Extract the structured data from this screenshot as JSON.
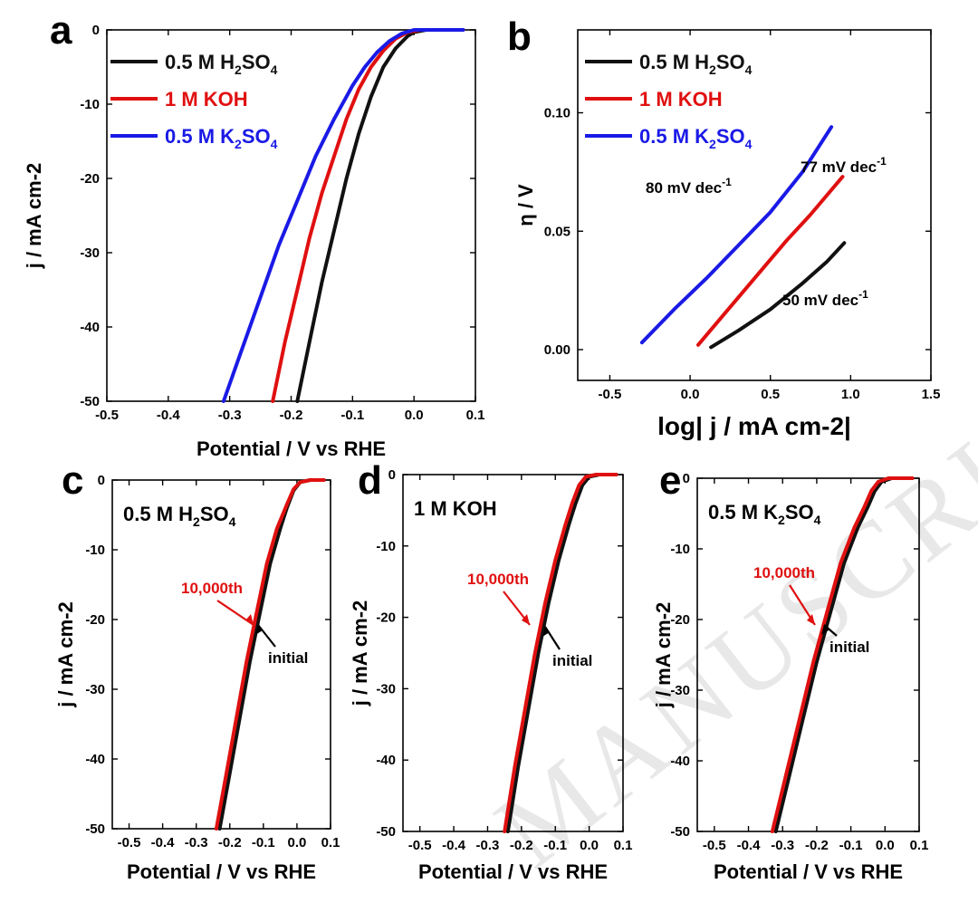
{
  "colors": {
    "black": "#111111",
    "red": "#e01010",
    "blue": "#1a1ae6"
  },
  "chart_data": [
    {
      "panel": "a",
      "type": "line",
      "xlabel": "Potential / V vs RHE",
      "ylabel": "j / mA cm-2",
      "xlim": [
        -0.5,
        0.1
      ],
      "ylim": [
        -50,
        0
      ],
      "xticks": [
        "-0.5",
        "-0.4",
        "-0.3",
        "-0.2",
        "-0.1",
        "0.0",
        "0.1"
      ],
      "yticks": [
        "-50",
        "-40",
        "-30",
        "-20",
        "-10",
        "0"
      ],
      "legend": [
        {
          "base": "0.5 M H",
          "sub1": "2",
          "mid": "SO",
          "sub2": "4",
          "color": "black"
        },
        {
          "base": "1 M KOH",
          "sub1": "",
          "mid": "",
          "sub2": "",
          "color": "red"
        },
        {
          "base": "0.5 M K",
          "sub1": "2",
          "mid": "SO",
          "sub2": "4",
          "color": "blue"
        }
      ],
      "series": [
        {
          "name": "0.5 M H2SO4",
          "color": "black",
          "x": [
            -0.19,
            -0.17,
            -0.15,
            -0.13,
            -0.11,
            -0.09,
            -0.07,
            -0.05,
            -0.03,
            -0.01,
            0.0,
            0.02,
            0.05,
            0.08
          ],
          "y": [
            -50,
            -42,
            -34,
            -27,
            -20,
            -14,
            -9,
            -5,
            -2.5,
            -0.8,
            -0.3,
            0,
            0,
            0
          ]
        },
        {
          "name": "1 M KOH",
          "color": "red",
          "x": [
            -0.23,
            -0.21,
            -0.19,
            -0.17,
            -0.15,
            -0.13,
            -0.11,
            -0.09,
            -0.07,
            -0.05,
            -0.03,
            -0.01,
            0.01,
            0.04,
            0.08
          ],
          "y": [
            -50,
            -42,
            -35,
            -28,
            -22,
            -17,
            -12,
            -8,
            -5,
            -2.8,
            -1.2,
            -0.3,
            0,
            0,
            0
          ]
        },
        {
          "name": "0.5 M K2SO4",
          "color": "blue",
          "x": [
            -0.31,
            -0.28,
            -0.25,
            -0.22,
            -0.19,
            -0.16,
            -0.13,
            -0.1,
            -0.08,
            -0.06,
            -0.04,
            -0.02,
            0.0,
            0.03,
            0.08
          ],
          "y": [
            -50,
            -43,
            -36,
            -29,
            -23,
            -17,
            -12,
            -7.5,
            -5,
            -3,
            -1.5,
            -0.5,
            0,
            0,
            0
          ]
        }
      ]
    },
    {
      "panel": "b",
      "type": "line",
      "xlabel": "log| j / mA cm-2|",
      "ylabel": "η / V",
      "xlim": [
        -0.7,
        1.5
      ],
      "ylim": [
        -0.013,
        0.135
      ],
      "xticks": [
        "-0.5",
        "0.0",
        "0.5",
        "1.0",
        "1.5"
      ],
      "yticks": [
        "0.00",
        "0.05",
        "0.10"
      ],
      "legend": [
        {
          "base": "0.5 M H",
          "sub1": "2",
          "mid": "SO",
          "sub2": "4",
          "color": "black"
        },
        {
          "base": "1 M KOH",
          "sub1": "",
          "mid": "",
          "sub2": "",
          "color": "red"
        },
        {
          "base": "0.5 M K",
          "sub1": "2",
          "mid": "SO",
          "sub2": "4",
          "color": "blue"
        }
      ],
      "annotations": [
        {
          "text": "80 mV dec",
          "sup": "-1"
        },
        {
          "text": "77 mV dec",
          "sup": "-1"
        },
        {
          "text": "50 mV dec",
          "sup": "-1"
        }
      ],
      "series": [
        {
          "name": "0.5 M H2SO4",
          "color": "black",
          "x": [
            0.13,
            0.3,
            0.5,
            0.7,
            0.85,
            0.96
          ],
          "y": [
            0.001,
            0.008,
            0.017,
            0.028,
            0.037,
            0.045
          ]
        },
        {
          "name": "1 M KOH",
          "color": "red",
          "x": [
            0.05,
            0.2,
            0.4,
            0.6,
            0.75,
            0.95
          ],
          "y": [
            0.002,
            0.014,
            0.03,
            0.046,
            0.057,
            0.073
          ]
        },
        {
          "name": "0.5 M K2SO4",
          "color": "blue",
          "x": [
            -0.3,
            -0.1,
            0.1,
            0.3,
            0.5,
            0.7,
            0.88
          ],
          "y": [
            0.003,
            0.017,
            0.03,
            0.044,
            0.058,
            0.075,
            0.094
          ]
        }
      ]
    },
    {
      "panel": "c",
      "type": "line",
      "label": {
        "base": "0.5 M H",
        "sub1": "2",
        "mid": "SO",
        "sub2": "4"
      },
      "xlabel": "Potential / V vs RHE",
      "ylabel": "j / mA cm-2",
      "xlim": [
        -0.55,
        0.1
      ],
      "ylim": [
        -50,
        0
      ],
      "xticks": [
        "-0.5",
        "-0.4",
        "-0.3",
        "-0.2",
        "-0.1",
        "0.0",
        "0.1"
      ],
      "yticks": [
        "-50",
        "-40",
        "-30",
        "-20",
        "-10",
        "0"
      ],
      "annotations": [
        {
          "text": "10,000th"
        },
        {
          "text": "initial"
        }
      ],
      "series": [
        {
          "name": "initial",
          "color": "black",
          "x": [
            -0.23,
            -0.2,
            -0.17,
            -0.14,
            -0.11,
            -0.08,
            -0.05,
            -0.03,
            -0.01,
            0.01,
            0.04,
            0.08
          ],
          "y": [
            -50,
            -42,
            -34,
            -26,
            -19,
            -12,
            -7,
            -4,
            -1.5,
            -0.3,
            0,
            0
          ]
        },
        {
          "name": "10,000th",
          "color": "red",
          "x": [
            -0.24,
            -0.21,
            -0.18,
            -0.15,
            -0.12,
            -0.09,
            -0.06,
            -0.03,
            -0.01,
            0.01,
            0.04,
            0.08
          ],
          "y": [
            -50,
            -42,
            -34,
            -26,
            -19,
            -12,
            -7,
            -3.5,
            -1.3,
            -0.3,
            0,
            0
          ]
        }
      ]
    },
    {
      "panel": "d",
      "type": "line",
      "label": {
        "base": "1 M KOH",
        "sub1": "",
        "mid": "",
        "sub2": ""
      },
      "xlabel": "Potential / V vs RHE",
      "ylabel": "j / mA cm-2",
      "xlim": [
        -0.55,
        0.1
      ],
      "ylim": [
        -50,
        0
      ],
      "xticks": [
        "-0.5",
        "-0.4",
        "-0.3",
        "-0.2",
        "-0.1",
        "0.0",
        "0.1"
      ],
      "yticks": [
        "-50",
        "-40",
        "-30",
        "-20",
        "-10",
        "0"
      ],
      "annotations": [
        {
          "text": "10,000th"
        },
        {
          "text": "initial"
        }
      ],
      "series": [
        {
          "name": "initial",
          "color": "black",
          "x": [
            -0.24,
            -0.21,
            -0.18,
            -0.15,
            -0.12,
            -0.09,
            -0.06,
            -0.04,
            -0.02,
            0.0,
            0.03,
            0.08
          ],
          "y": [
            -50,
            -41,
            -33,
            -25,
            -18,
            -12,
            -7,
            -4,
            -1.5,
            -0.3,
            0,
            0
          ]
        },
        {
          "name": "10,000th",
          "color": "red",
          "x": [
            -0.25,
            -0.22,
            -0.19,
            -0.16,
            -0.13,
            -0.1,
            -0.07,
            -0.05,
            -0.03,
            -0.01,
            0.02,
            0.08
          ],
          "y": [
            -50,
            -41,
            -33,
            -25,
            -18,
            -12,
            -7,
            -4,
            -1.5,
            -0.3,
            0,
            0
          ]
        }
      ]
    },
    {
      "panel": "e",
      "type": "line",
      "label": {
        "base": "0.5 M K",
        "sub1": "2",
        "mid": "SO",
        "sub2": "4"
      },
      "xlabel": "Potential / V vs RHE",
      "ylabel": "j / mA cm-2",
      "xlim": [
        -0.55,
        0.1
      ],
      "ylim": [
        -50,
        0
      ],
      "xticks": [
        "-0.5",
        "-0.4",
        "-0.3",
        "-0.2",
        "-0.1",
        "0.0",
        "0.1"
      ],
      "yticks": [
        "-50",
        "-40",
        "-30",
        "-20",
        "-10",
        "0"
      ],
      "annotations": [
        {
          "text": "10,000th"
        },
        {
          "text": "initial"
        }
      ],
      "series": [
        {
          "name": "initial",
          "color": "black",
          "x": [
            -0.32,
            -0.28,
            -0.24,
            -0.2,
            -0.16,
            -0.12,
            -0.08,
            -0.05,
            -0.03,
            -0.01,
            0.02,
            0.08
          ],
          "y": [
            -50,
            -42,
            -34,
            -26,
            -19,
            -12,
            -7,
            -4,
            -1.8,
            -0.5,
            0,
            0
          ]
        },
        {
          "name": "10,000th",
          "color": "red",
          "x": [
            -0.33,
            -0.29,
            -0.25,
            -0.21,
            -0.17,
            -0.13,
            -0.09,
            -0.06,
            -0.04,
            -0.02,
            0.01,
            0.08
          ],
          "y": [
            -50,
            -42,
            -34,
            -26,
            -19,
            -12,
            -7,
            -4,
            -1.8,
            -0.5,
            0,
            0
          ]
        }
      ]
    }
  ]
}
